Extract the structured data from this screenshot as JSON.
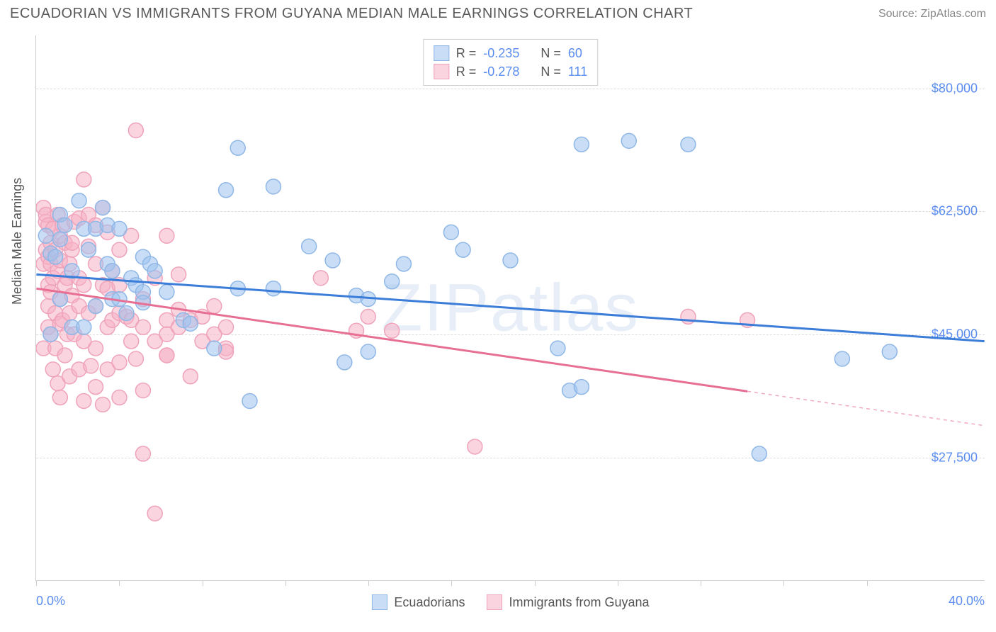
{
  "title": "ECUADORIAN VS IMMIGRANTS FROM GUYANA MEDIAN MALE EARNINGS CORRELATION CHART",
  "source_label": "Source: ZipAtlas.com",
  "watermark": "ZIPatlas",
  "chart": {
    "type": "scatter",
    "xlim": [
      0,
      40
    ],
    "ylim": [
      10000,
      87500
    ],
    "x_axis_label_left": "0.0%",
    "x_axis_label_right": "40.0%",
    "y_axis_label": "Median Male Earnings",
    "y_ticks": [
      27500,
      45000,
      62500,
      80000
    ],
    "y_tick_labels": [
      "$27,500",
      "$45,000",
      "$62,500",
      "$80,000"
    ],
    "x_tick_positions": [
      0,
      3.5,
      7,
      10.5,
      14,
      17.5,
      21,
      24.5,
      28,
      31.5,
      35
    ],
    "grid_color": "#dddddd",
    "axis_color": "#cccccc",
    "tick_label_color": "#5b8def",
    "axis_label_color": "#555555",
    "series": [
      {
        "name": "Ecuadorians",
        "fill_color": "rgba(157,195,238,0.55)",
        "stroke_color": "#8fb7e6",
        "line_color": "#3b7dd8",
        "marker_radius": 10.5,
        "R": "-0.235",
        "N": "60",
        "regression": {
          "x1": 0,
          "y1": 53500,
          "x2": 40,
          "y2": 44000,
          "solid_to_x": 40
        },
        "points": [
          [
            0.4,
            59000
          ],
          [
            0.6,
            56500
          ],
          [
            0.6,
            45000
          ],
          [
            0.8,
            56000
          ],
          [
            1.0,
            62000
          ],
          [
            1.0,
            58500
          ],
          [
            1.0,
            50000
          ],
          [
            1.2,
            60500
          ],
          [
            1.5,
            46000
          ],
          [
            1.5,
            54000
          ],
          [
            1.8,
            64000
          ],
          [
            2.0,
            60000
          ],
          [
            2.0,
            46000
          ],
          [
            2.2,
            57000
          ],
          [
            2.5,
            60000
          ],
          [
            2.5,
            49000
          ],
          [
            2.8,
            63000
          ],
          [
            3.0,
            55000
          ],
          [
            3.0,
            60500
          ],
          [
            3.2,
            54000
          ],
          [
            3.2,
            50000
          ],
          [
            3.5,
            60000
          ],
          [
            3.5,
            50000
          ],
          [
            3.8,
            48000
          ],
          [
            4.0,
            53000
          ],
          [
            4.2,
            52000
          ],
          [
            4.5,
            51000
          ],
          [
            4.5,
            56000
          ],
          [
            4.5,
            49500
          ],
          [
            4.8,
            55000
          ],
          [
            5.0,
            54000
          ],
          [
            5.5,
            51000
          ],
          [
            6.2,
            47000
          ],
          [
            6.5,
            46500
          ],
          [
            7.5,
            43000
          ],
          [
            8.0,
            65500
          ],
          [
            8.5,
            71500
          ],
          [
            8.5,
            51500
          ],
          [
            9.0,
            35500
          ],
          [
            10.0,
            51500
          ],
          [
            10.0,
            66000
          ],
          [
            11.5,
            57500
          ],
          [
            12.5,
            55500
          ],
          [
            13.0,
            41000
          ],
          [
            13.5,
            50500
          ],
          [
            14.0,
            42500
          ],
          [
            14.0,
            50000
          ],
          [
            15.0,
            52500
          ],
          [
            15.5,
            55000
          ],
          [
            17.5,
            59500
          ],
          [
            18.0,
            57000
          ],
          [
            20.0,
            55500
          ],
          [
            22.0,
            43000
          ],
          [
            22.5,
            37000
          ],
          [
            23.0,
            37500
          ],
          [
            23.0,
            72000
          ],
          [
            25.0,
            72500
          ],
          [
            27.5,
            72000
          ],
          [
            30.5,
            28000
          ],
          [
            34.0,
            41500
          ],
          [
            36.0,
            42500
          ]
        ]
      },
      {
        "name": "Immigrants from Guyana",
        "fill_color": "rgba(246,176,196,0.55)",
        "stroke_color": "#efa3bb",
        "line_color": "#e76f94",
        "marker_radius": 10.5,
        "R": "-0.278",
        "N": "111",
        "regression": {
          "x1": 0,
          "y1": 51500,
          "x2": 40,
          "y2": 32000,
          "solid_to_x": 30
        },
        "points": [
          [
            0.3,
            63000
          ],
          [
            0.3,
            55000
          ],
          [
            0.3,
            43000
          ],
          [
            0.4,
            61000
          ],
          [
            0.4,
            57000
          ],
          [
            0.4,
            62000
          ],
          [
            0.5,
            60500
          ],
          [
            0.5,
            46000
          ],
          [
            0.5,
            56000
          ],
          [
            0.5,
            52000
          ],
          [
            0.5,
            49000
          ],
          [
            0.6,
            58000
          ],
          [
            0.6,
            55000
          ],
          [
            0.6,
            51000
          ],
          [
            0.6,
            45000
          ],
          [
            0.7,
            60000
          ],
          [
            0.7,
            53000
          ],
          [
            0.7,
            40000
          ],
          [
            0.8,
            57000
          ],
          [
            0.8,
            48000
          ],
          [
            0.8,
            43000
          ],
          [
            0.9,
            62000
          ],
          [
            0.9,
            54000
          ],
          [
            0.9,
            38000
          ],
          [
            1.0,
            59000
          ],
          [
            1.0,
            55500
          ],
          [
            1.0,
            50000
          ],
          [
            1.0,
            46500
          ],
          [
            1.0,
            36000
          ],
          [
            1.1,
            60500
          ],
          [
            1.1,
            47000
          ],
          [
            1.2,
            58000
          ],
          [
            1.2,
            52000
          ],
          [
            1.2,
            42000
          ],
          [
            1.3,
            53000
          ],
          [
            1.3,
            45000
          ],
          [
            1.4,
            55000
          ],
          [
            1.4,
            48000
          ],
          [
            1.4,
            39000
          ],
          [
            1.5,
            57000
          ],
          [
            1.5,
            50500
          ],
          [
            1.5,
            58000
          ],
          [
            1.6,
            45000
          ],
          [
            1.6,
            61000
          ],
          [
            1.8,
            53000
          ],
          [
            1.8,
            40000
          ],
          [
            1.8,
            61500
          ],
          [
            1.8,
            49000
          ],
          [
            2.0,
            67000
          ],
          [
            2.0,
            52000
          ],
          [
            2.0,
            44000
          ],
          [
            2.0,
            35500
          ],
          [
            2.2,
            57500
          ],
          [
            2.2,
            48000
          ],
          [
            2.2,
            62000
          ],
          [
            2.3,
            40500
          ],
          [
            2.5,
            55000
          ],
          [
            2.5,
            49000
          ],
          [
            2.5,
            60500
          ],
          [
            2.5,
            43000
          ],
          [
            2.5,
            37500
          ],
          [
            2.8,
            52000
          ],
          [
            2.8,
            63000
          ],
          [
            2.8,
            35000
          ],
          [
            3.0,
            51500
          ],
          [
            3.0,
            46000
          ],
          [
            3.0,
            59500
          ],
          [
            3.0,
            40000
          ],
          [
            3.2,
            47000
          ],
          [
            3.2,
            54000
          ],
          [
            3.5,
            57000
          ],
          [
            3.5,
            48000
          ],
          [
            3.5,
            52000
          ],
          [
            3.5,
            41000
          ],
          [
            3.5,
            36000
          ],
          [
            3.8,
            47500
          ],
          [
            4.0,
            59000
          ],
          [
            4.0,
            47000
          ],
          [
            4.0,
            44000
          ],
          [
            4.2,
            41500
          ],
          [
            4.2,
            74000
          ],
          [
            4.5,
            50000
          ],
          [
            4.5,
            46000
          ],
          [
            4.5,
            37000
          ],
          [
            4.5,
            28000
          ],
          [
            5.0,
            53000
          ],
          [
            5.0,
            44000
          ],
          [
            5.0,
            19500
          ],
          [
            5.5,
            59000
          ],
          [
            5.5,
            47000
          ],
          [
            5.5,
            42000
          ],
          [
            5.5,
            45000
          ],
          [
            5.5,
            42000
          ],
          [
            6.0,
            48500
          ],
          [
            6.0,
            46000
          ],
          [
            6.0,
            53500
          ],
          [
            6.5,
            47000
          ],
          [
            6.5,
            39000
          ],
          [
            7.0,
            44000
          ],
          [
            7.0,
            47500
          ],
          [
            7.5,
            45000
          ],
          [
            7.5,
            49000
          ],
          [
            8.0,
            43000
          ],
          [
            8.0,
            46000
          ],
          [
            8.0,
            42500
          ],
          [
            12.0,
            53000
          ],
          [
            13.5,
            45500
          ],
          [
            14.0,
            47500
          ],
          [
            15.0,
            45500
          ],
          [
            18.5,
            29000
          ],
          [
            27.5,
            47500
          ],
          [
            30.0,
            47000
          ]
        ]
      }
    ]
  }
}
